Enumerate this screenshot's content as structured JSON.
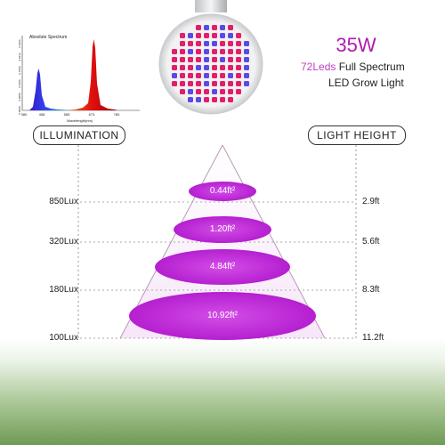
{
  "spectrum": {
    "title": "Absolute Spectrum",
    "xlabel": "Wavelength(nm)",
    "x_ticks": [
      "380",
      "458",
      "565",
      "673",
      "780"
    ],
    "y_ticks": [
      "0.0000",
      "0.0058",
      "0.0106",
      "0.0159",
      "0.0212",
      "0.0264"
    ]
  },
  "product": {
    "wattage": "35W",
    "leds": "72Leds",
    "line1_rest": " Full Spectrum",
    "line2": "LED Grow Light"
  },
  "labels": {
    "illumination": "ILLUMINATION",
    "light_height": "LIGHT HEIGHT"
  },
  "levels": [
    {
      "lux": "850Lux",
      "area": "0.44ft²",
      "height": "2.9ft"
    },
    {
      "lux": "320Lux",
      "area": "1.20ft²",
      "height": "5.6ft"
    },
    {
      "lux": "180Lux",
      "area": "4.84ft²",
      "height": "8.3ft"
    },
    {
      "lux": "100Lux",
      "area": "10.92ft²",
      "height": "11.2ft"
    }
  ],
  "colors": {
    "magenta": "#c020d0",
    "pink_text": "#c040c0"
  }
}
